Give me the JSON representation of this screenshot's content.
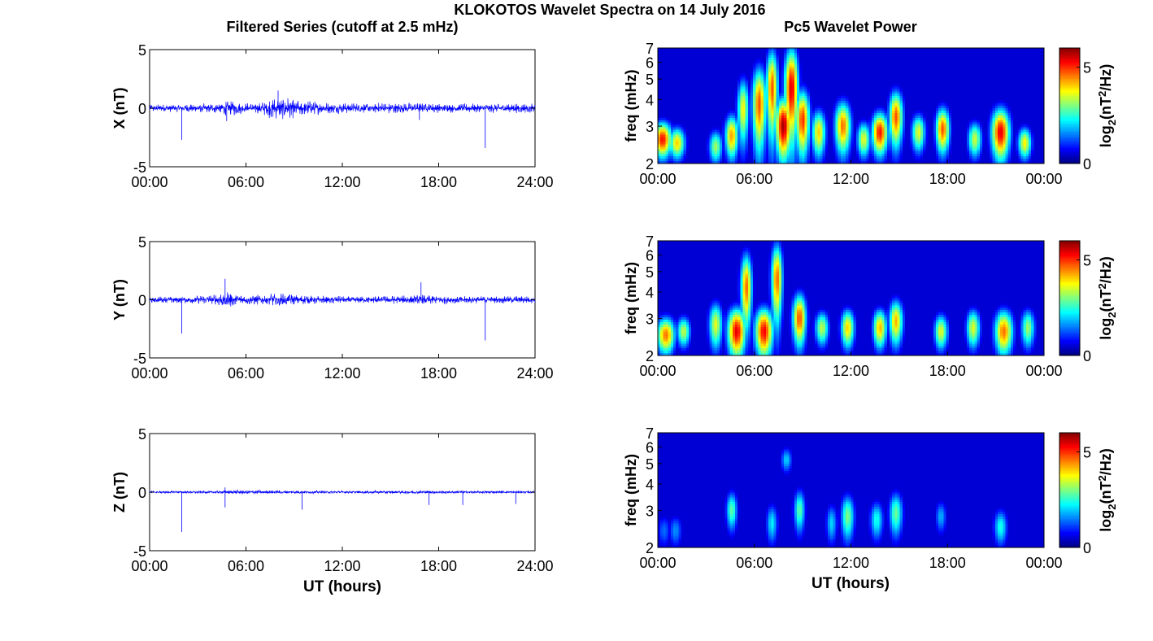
{
  "figure": {
    "title": "KLOKOTOS Wavelet Spectra on 14 July 2016",
    "left_title": "Filtered Series (cutoff at 2.5 mHz)",
    "right_title": "Pc5 Wavelet Power",
    "xlabel": "UT (hours)"
  },
  "colors": {
    "trace": "#0000ff",
    "axis": "#000000",
    "background_low": "#00008f"
  },
  "chart_data": [
    {
      "type": "line",
      "panel": "X",
      "ylabel": "X (nT)",
      "ylim": [
        -5,
        5
      ],
      "yticks": [
        "5",
        "0",
        "-5"
      ],
      "xlim": [
        0,
        24
      ],
      "xticks": [
        "00:00",
        "06:00",
        "12:00",
        "18:00",
        "24:00"
      ],
      "envelope": {
        "hours": [
          0,
          2,
          4,
          5,
          6,
          7,
          7.5,
          8.5,
          9.5,
          11,
          13,
          15,
          17,
          19,
          21,
          23,
          24
        ],
        "amplitude_nT": [
          0.35,
          0.35,
          0.45,
          0.75,
          0.45,
          0.55,
          0.9,
          1.0,
          0.7,
          0.5,
          0.45,
          0.5,
          0.45,
          0.4,
          0.4,
          0.45,
          0.4
        ]
      },
      "spikes": [
        {
          "x": 2.0,
          "y": -2.7
        },
        {
          "x": 20.9,
          "y": -3.4
        },
        {
          "x": 4.8,
          "y": -1.1
        },
        {
          "x": 16.8,
          "y": -1.0
        },
        {
          "x": 8.0,
          "y": 1.5
        }
      ]
    },
    {
      "type": "line",
      "panel": "Y",
      "ylabel": "Y (nT)",
      "ylim": [
        -5,
        5
      ],
      "yticks": [
        "5",
        "0",
        "-5"
      ],
      "xlim": [
        0,
        24
      ],
      "xticks": [
        "00:00",
        "06:00",
        "12:00",
        "18:00",
        "24:00"
      ],
      "envelope": {
        "hours": [
          0,
          2,
          4,
          4.8,
          5.5,
          7,
          8,
          9,
          11,
          13,
          15,
          17,
          19,
          21,
          23,
          24
        ],
        "amplitude_nT": [
          0.3,
          0.3,
          0.45,
          0.8,
          0.5,
          0.45,
          0.6,
          0.5,
          0.35,
          0.3,
          0.35,
          0.45,
          0.35,
          0.3,
          0.35,
          0.3
        ]
      },
      "spikes": [
        {
          "x": 2.0,
          "y": -2.9
        },
        {
          "x": 20.9,
          "y": -3.5
        },
        {
          "x": 4.7,
          "y": 1.8
        },
        {
          "x": 16.9,
          "y": 1.5
        }
      ]
    },
    {
      "type": "line",
      "panel": "Z",
      "ylabel": "Z (nT)",
      "ylim": [
        -5,
        5
      ],
      "yticks": [
        "5",
        "0",
        "-5"
      ],
      "xlim": [
        0,
        24
      ],
      "xticks": [
        "00:00",
        "06:00",
        "12:00",
        "18:00",
        "24:00"
      ],
      "envelope": {
        "hours": [
          0,
          4,
          5,
          8,
          12,
          16,
          20,
          24
        ],
        "amplitude_nT": [
          0.12,
          0.12,
          0.2,
          0.15,
          0.12,
          0.15,
          0.12,
          0.12
        ]
      },
      "spikes": [
        {
          "x": 2.0,
          "y": -3.4
        },
        {
          "x": 4.7,
          "y": -1.3
        },
        {
          "x": 9.5,
          "y": -1.5
        },
        {
          "x": 17.4,
          "y": -1.1
        },
        {
          "x": 19.5,
          "y": -1.1
        },
        {
          "x": 22.8,
          "y": -1.0
        },
        {
          "x": 4.7,
          "y": 0.4
        }
      ]
    },
    {
      "type": "heatmap",
      "panel": "X",
      "ylabel": "freq (mHz)",
      "yticks": [
        "7",
        "6",
        "5",
        "4",
        "3",
        "2"
      ],
      "ylim": [
        2,
        7
      ],
      "xlim": [
        0,
        24
      ],
      "xticks": [
        "00:00",
        "06:00",
        "12:00",
        "18:00",
        "00:00"
      ],
      "colorbar": {
        "label": "log2(nT2/Hz)",
        "range": [
          0,
          6
        ],
        "ticks": [
          "5",
          "0"
        ]
      },
      "blobs": [
        {
          "t": 0.3,
          "f": 2.6,
          "p": 5.2,
          "wt": 0.4,
          "wf": 0.35
        },
        {
          "t": 1.2,
          "f": 2.5,
          "p": 4.0,
          "wt": 0.35,
          "wf": 0.3
        },
        {
          "t": 3.6,
          "f": 2.4,
          "p": 3.2,
          "wt": 0.3,
          "wf": 0.3
        },
        {
          "t": 4.6,
          "f": 2.7,
          "p": 4.3,
          "wt": 0.3,
          "wf": 0.45
        },
        {
          "t": 5.3,
          "f": 3.6,
          "p": 3.8,
          "wt": 0.25,
          "wf": 0.9
        },
        {
          "t": 6.3,
          "f": 3.8,
          "p": 4.8,
          "wt": 0.3,
          "wf": 1.2
        },
        {
          "t": 7.1,
          "f": 4.5,
          "p": 4.8,
          "wt": 0.25,
          "wf": 1.5
        },
        {
          "t": 7.8,
          "f": 3.0,
          "p": 5.8,
          "wt": 0.35,
          "wf": 0.7
        },
        {
          "t": 8.3,
          "f": 4.5,
          "p": 5.5,
          "wt": 0.3,
          "wf": 1.6
        },
        {
          "t": 9.0,
          "f": 3.2,
          "p": 5.0,
          "wt": 0.3,
          "wf": 0.8
        },
        {
          "t": 10.0,
          "f": 2.8,
          "p": 4.0,
          "wt": 0.3,
          "wf": 0.5
        },
        {
          "t": 11.5,
          "f": 3.0,
          "p": 4.6,
          "wt": 0.35,
          "wf": 0.6
        },
        {
          "t": 12.8,
          "f": 2.6,
          "p": 3.6,
          "wt": 0.3,
          "wf": 0.35
        },
        {
          "t": 13.8,
          "f": 2.8,
          "p": 5.2,
          "wt": 0.35,
          "wf": 0.45
        },
        {
          "t": 14.8,
          "f": 3.3,
          "p": 4.8,
          "wt": 0.3,
          "wf": 0.7
        },
        {
          "t": 16.2,
          "f": 2.8,
          "p": 3.6,
          "wt": 0.3,
          "wf": 0.4
        },
        {
          "t": 17.7,
          "f": 2.9,
          "p": 4.8,
          "wt": 0.3,
          "wf": 0.5
        },
        {
          "t": 19.7,
          "f": 2.6,
          "p": 3.5,
          "wt": 0.3,
          "wf": 0.35
        },
        {
          "t": 21.3,
          "f": 2.8,
          "p": 5.4,
          "wt": 0.4,
          "wf": 0.55
        },
        {
          "t": 22.8,
          "f": 2.5,
          "p": 3.8,
          "wt": 0.3,
          "wf": 0.3
        }
      ]
    },
    {
      "type": "heatmap",
      "panel": "Y",
      "ylabel": "freq (mHz)",
      "yticks": [
        "7",
        "6",
        "5",
        "4",
        "3",
        "2"
      ],
      "ylim": [
        2,
        7
      ],
      "xlim": [
        0,
        24
      ],
      "xticks": [
        "00:00",
        "06:00",
        "12:00",
        "18:00",
        "00:00"
      ],
      "colorbar": {
        "label": "log2(nT2/Hz)",
        "range": [
          0,
          6
        ],
        "ticks": [
          "5",
          "0"
        ]
      },
      "blobs": [
        {
          "t": 0.5,
          "f": 2.5,
          "p": 4.6,
          "wt": 0.4,
          "wf": 0.35
        },
        {
          "t": 1.6,
          "f": 2.6,
          "p": 3.4,
          "wt": 0.3,
          "wf": 0.3
        },
        {
          "t": 3.6,
          "f": 2.8,
          "p": 3.6,
          "wt": 0.3,
          "wf": 0.5
        },
        {
          "t": 4.9,
          "f": 2.6,
          "p": 5.4,
          "wt": 0.4,
          "wf": 0.5
        },
        {
          "t": 5.5,
          "f": 4.2,
          "p": 4.6,
          "wt": 0.25,
          "wf": 1.2
        },
        {
          "t": 6.6,
          "f": 2.6,
          "p": 5.3,
          "wt": 0.4,
          "wf": 0.5
        },
        {
          "t": 7.4,
          "f": 4.6,
          "p": 4.6,
          "wt": 0.25,
          "wf": 1.4
        },
        {
          "t": 8.8,
          "f": 3.0,
          "p": 4.8,
          "wt": 0.3,
          "wf": 0.6
        },
        {
          "t": 10.2,
          "f": 2.7,
          "p": 3.4,
          "wt": 0.3,
          "wf": 0.35
        },
        {
          "t": 11.8,
          "f": 2.7,
          "p": 4.0,
          "wt": 0.3,
          "wf": 0.4
        },
        {
          "t": 13.8,
          "f": 2.7,
          "p": 4.2,
          "wt": 0.3,
          "wf": 0.4
        },
        {
          "t": 14.8,
          "f": 2.9,
          "p": 4.2,
          "wt": 0.3,
          "wf": 0.5
        },
        {
          "t": 17.6,
          "f": 2.6,
          "p": 3.6,
          "wt": 0.3,
          "wf": 0.35
        },
        {
          "t": 19.6,
          "f": 2.7,
          "p": 3.6,
          "wt": 0.3,
          "wf": 0.4
        },
        {
          "t": 21.5,
          "f": 2.6,
          "p": 4.6,
          "wt": 0.4,
          "wf": 0.45
        },
        {
          "t": 23.0,
          "f": 2.7,
          "p": 3.2,
          "wt": 0.3,
          "wf": 0.4
        }
      ]
    },
    {
      "type": "heatmap",
      "panel": "Z",
      "ylabel": "freq (mHz)",
      "yticks": [
        "7",
        "6",
        "5",
        "4",
        "3",
        "2"
      ],
      "ylim": [
        2,
        7
      ],
      "xlim": [
        0,
        24
      ],
      "xticks": [
        "00:00",
        "06:00",
        "12:00",
        "18:00",
        "00:00"
      ],
      "colorbar": {
        "label": "log2(nT2/Hz)",
        "range": [
          0,
          6
        ],
        "ticks": [
          "5",
          "0"
        ]
      },
      "blobs": [
        {
          "t": 0.4,
          "f": 2.4,
          "p": 1.4,
          "wt": 0.3,
          "wf": 0.3
        },
        {
          "t": 1.1,
          "f": 2.4,
          "p": 1.6,
          "wt": 0.3,
          "wf": 0.3
        },
        {
          "t": 4.6,
          "f": 3.0,
          "p": 2.8,
          "wt": 0.25,
          "wf": 0.45
        },
        {
          "t": 7.1,
          "f": 2.6,
          "p": 2.2,
          "wt": 0.25,
          "wf": 0.4
        },
        {
          "t": 8.0,
          "f": 5.2,
          "p": 2.0,
          "wt": 0.25,
          "wf": 0.5
        },
        {
          "t": 8.8,
          "f": 3.0,
          "p": 2.8,
          "wt": 0.25,
          "wf": 0.5
        },
        {
          "t": 10.8,
          "f": 2.6,
          "p": 2.0,
          "wt": 0.25,
          "wf": 0.4
        },
        {
          "t": 11.8,
          "f": 2.8,
          "p": 3.0,
          "wt": 0.3,
          "wf": 0.5
        },
        {
          "t": 13.6,
          "f": 2.7,
          "p": 2.4,
          "wt": 0.3,
          "wf": 0.4
        },
        {
          "t": 14.8,
          "f": 2.9,
          "p": 2.9,
          "wt": 0.3,
          "wf": 0.5
        },
        {
          "t": 17.6,
          "f": 2.8,
          "p": 1.8,
          "wt": 0.25,
          "wf": 0.35
        },
        {
          "t": 21.3,
          "f": 2.5,
          "p": 2.4,
          "wt": 0.3,
          "wf": 0.35
        }
      ]
    }
  ]
}
